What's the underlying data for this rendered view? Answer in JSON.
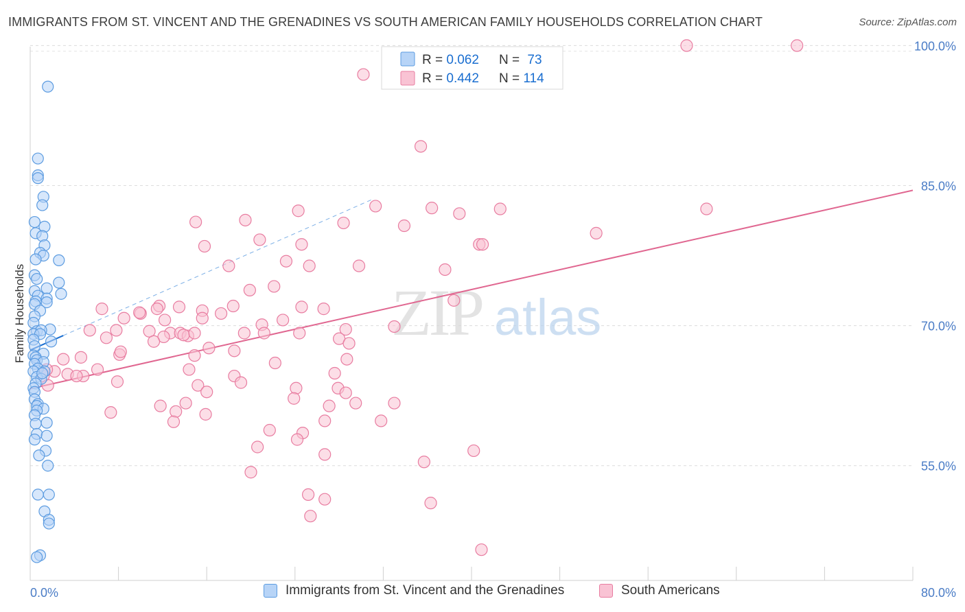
{
  "title": "IMMIGRANTS FROM ST. VINCENT AND THE GRENADINES VS SOUTH AMERICAN FAMILY HOUSEHOLDS CORRELATION CHART",
  "source": "Source: ZipAtlas.com",
  "watermark": {
    "zip": "ZIP",
    "atlas": "atlas"
  },
  "colors": {
    "blue": "#5b9be0",
    "blue_fill": "#b7d4f7",
    "blue_line": "#1a6ed0",
    "pink": "#e87ca0",
    "pink_fill": "#f9c3d4",
    "pink_line": "#e06690",
    "axis_text": "#4a7cc6"
  },
  "legend": {
    "r_label": "R = ",
    "n_label": "N = ",
    "rows": [
      {
        "r": "0.062",
        "n": "73",
        "color": "blue"
      },
      {
        "r": "0.442",
        "n": "114",
        "color": "pink"
      }
    ]
  },
  "bottom_legend": [
    "Immigrants from St. Vincent and the Grenadines",
    "South Americans"
  ],
  "chart_data": {
    "type": "scatter",
    "xlabel": "",
    "ylabel": "Family Households",
    "xlim": [
      0,
      80
    ],
    "ylim": [
      43,
      102
    ],
    "x_tick_labels": [
      "0.0%",
      "80.0%"
    ],
    "y_ticks": [
      55,
      70,
      85,
      100
    ],
    "y_tick_labels": [
      "55.0%",
      "70.0%",
      "85.0%",
      "100.0%"
    ],
    "grid": true,
    "series": [
      {
        "name": "Immigrants from St. Vincent and the Grenadines",
        "points": [
          [
            1.6,
            95.6
          ],
          [
            0.7,
            87.9
          ],
          [
            0.7,
            86.1
          ],
          [
            0.7,
            85.8
          ],
          [
            1.2,
            83.8
          ],
          [
            1.1,
            82.9
          ],
          [
            0.4,
            81.1
          ],
          [
            1.3,
            80.6
          ],
          [
            0.5,
            79.9
          ],
          [
            1.1,
            79.6
          ],
          [
            1.3,
            78.6
          ],
          [
            0.9,
            77.8
          ],
          [
            1.2,
            77.5
          ],
          [
            0.5,
            77.1
          ],
          [
            2.6,
            77.0
          ],
          [
            0.4,
            75.4
          ],
          [
            0.6,
            75.0
          ],
          [
            2.6,
            74.6
          ],
          [
            1.5,
            74.0
          ],
          [
            0.4,
            73.7
          ],
          [
            2.8,
            73.4
          ],
          [
            0.7,
            73.2
          ],
          [
            1.5,
            72.9
          ],
          [
            0.5,
            72.6
          ],
          [
            1.5,
            72.5
          ],
          [
            0.4,
            72.3
          ],
          [
            0.9,
            71.6
          ],
          [
            0.4,
            71.0
          ],
          [
            0.3,
            70.3
          ],
          [
            1.8,
            69.6
          ],
          [
            0.6,
            69.4
          ],
          [
            1.0,
            69.5
          ],
          [
            0.3,
            69.1
          ],
          [
            0.9,
            69.1
          ],
          [
            0.3,
            68.5
          ],
          [
            1.9,
            68.3
          ],
          [
            0.4,
            67.8
          ],
          [
            1.2,
            67.0
          ],
          [
            0.3,
            66.8
          ],
          [
            0.5,
            66.6
          ],
          [
            0.6,
            66.3
          ],
          [
            1.2,
            66.1
          ],
          [
            0.4,
            65.9
          ],
          [
            0.7,
            65.4
          ],
          [
            1.3,
            65.1
          ],
          [
            0.3,
            65.1
          ],
          [
            0.6,
            64.5
          ],
          [
            1.0,
            64.3
          ],
          [
            0.5,
            63.8
          ],
          [
            0.3,
            63.3
          ],
          [
            0.4,
            62.9
          ],
          [
            0.4,
            62.1
          ],
          [
            0.7,
            61.6
          ],
          [
            0.6,
            61.4
          ],
          [
            1.2,
            61.1
          ],
          [
            0.6,
            60.9
          ],
          [
            0.4,
            60.4
          ],
          [
            0.5,
            59.5
          ],
          [
            1.5,
            59.6
          ],
          [
            0.6,
            58.4
          ],
          [
            1.5,
            58.2
          ],
          [
            0.4,
            57.8
          ],
          [
            1.4,
            56.6
          ],
          [
            0.8,
            56.1
          ],
          [
            1.6,
            55.0
          ],
          [
            0.7,
            51.9
          ],
          [
            1.7,
            51.9
          ],
          [
            1.3,
            50.1
          ],
          [
            1.7,
            49.2
          ],
          [
            1.7,
            48.8
          ],
          [
            0.9,
            45.4
          ],
          [
            0.6,
            45.2
          ],
          [
            1.1,
            64.9
          ]
        ]
      },
      {
        "name": "South Americans",
        "points": [
          [
            59.5,
            100.0
          ],
          [
            69.5,
            100.0
          ],
          [
            30.2,
            96.9
          ],
          [
            35.4,
            89.2
          ],
          [
            31.3,
            82.8
          ],
          [
            36.4,
            82.6
          ],
          [
            42.6,
            82.5
          ],
          [
            24.3,
            82.3
          ],
          [
            38.9,
            82.0
          ],
          [
            19.5,
            81.3
          ],
          [
            28.4,
            81.0
          ],
          [
            33.9,
            80.7
          ],
          [
            61.3,
            82.5
          ],
          [
            15.0,
            81.1
          ],
          [
            51.3,
            79.9
          ],
          [
            20.8,
            79.2
          ],
          [
            40.7,
            78.7
          ],
          [
            41.0,
            78.7
          ],
          [
            15.8,
            78.5
          ],
          [
            24.6,
            78.7
          ],
          [
            23.2,
            76.9
          ],
          [
            18.0,
            76.4
          ],
          [
            25.3,
            76.4
          ],
          [
            29.8,
            76.4
          ],
          [
            37.6,
            76.0
          ],
          [
            19.9,
            73.8
          ],
          [
            22.1,
            74.2
          ],
          [
            38.4,
            72.7
          ],
          [
            18.4,
            72.1
          ],
          [
            11.7,
            72.1
          ],
          [
            24.6,
            72.0
          ],
          [
            26.6,
            71.8
          ],
          [
            13.5,
            72.0
          ],
          [
            11.5,
            71.8
          ],
          [
            10.0,
            71.3
          ],
          [
            15.6,
            71.6
          ],
          [
            9.9,
            71.4
          ],
          [
            6.5,
            71.8
          ],
          [
            12.2,
            70.6
          ],
          [
            17.3,
            71.3
          ],
          [
            15.6,
            70.8
          ],
          [
            22.9,
            70.6
          ],
          [
            21.0,
            70.1
          ],
          [
            10.8,
            69.4
          ],
          [
            7.8,
            69.5
          ],
          [
            8.5,
            70.8
          ],
          [
            5.4,
            69.5
          ],
          [
            12.7,
            69.2
          ],
          [
            13.6,
            69.2
          ],
          [
            14.3,
            68.9
          ],
          [
            24.4,
            69.2
          ],
          [
            19.4,
            69.2
          ],
          [
            21.2,
            69.2
          ],
          [
            28.6,
            69.6
          ],
          [
            33.0,
            69.9
          ],
          [
            6.9,
            68.7
          ],
          [
            13.9,
            69.0
          ],
          [
            14.9,
            69.2
          ],
          [
            12.1,
            68.8
          ],
          [
            28.0,
            68.6
          ],
          [
            11.2,
            68.3
          ],
          [
            28.9,
            68.1
          ],
          [
            16.2,
            67.6
          ],
          [
            18.5,
            67.3
          ],
          [
            8.1,
            66.9
          ],
          [
            14.9,
            66.8
          ],
          [
            8.2,
            67.2
          ],
          [
            28.7,
            66.4
          ],
          [
            3.0,
            66.4
          ],
          [
            4.6,
            66.6
          ],
          [
            22.2,
            66.0
          ],
          [
            6.1,
            65.3
          ],
          [
            14.4,
            65.3
          ],
          [
            18.5,
            64.6
          ],
          [
            7.9,
            64.0
          ],
          [
            3.4,
            64.8
          ],
          [
            4.8,
            64.6
          ],
          [
            1.2,
            64.6
          ],
          [
            2.2,
            65.1
          ],
          [
            4.2,
            64.6
          ],
          [
            1.5,
            65.3
          ],
          [
            19.1,
            63.9
          ],
          [
            24.1,
            63.3
          ],
          [
            23.9,
            62.2
          ],
          [
            1.6,
            63.6
          ],
          [
            15.2,
            63.6
          ],
          [
            13.2,
            60.8
          ],
          [
            16.0,
            62.9
          ],
          [
            14.1,
            61.7
          ],
          [
            11.8,
            61.4
          ],
          [
            15.9,
            60.5
          ],
          [
            7.3,
            60.7
          ],
          [
            13.0,
            59.7
          ],
          [
            26.7,
            59.8
          ],
          [
            24.7,
            58.5
          ],
          [
            21.7,
            58.8
          ],
          [
            24.2,
            57.8
          ],
          [
            26.7,
            56.2
          ],
          [
            35.7,
            55.4
          ],
          [
            27.1,
            61.4
          ],
          [
            27.9,
            63.3
          ],
          [
            28.6,
            62.8
          ],
          [
            27.6,
            64.9
          ],
          [
            29.5,
            61.7
          ],
          [
            20.6,
            57.0
          ],
          [
            40.2,
            56.6
          ],
          [
            40.9,
            46.0
          ],
          [
            33.0,
            61.7
          ],
          [
            31.8,
            59.8
          ],
          [
            20.0,
            54.3
          ],
          [
            25.2,
            51.9
          ],
          [
            26.7,
            51.4
          ],
          [
            36.3,
            51.0
          ],
          [
            25.4,
            49.6
          ]
        ]
      }
    ]
  }
}
